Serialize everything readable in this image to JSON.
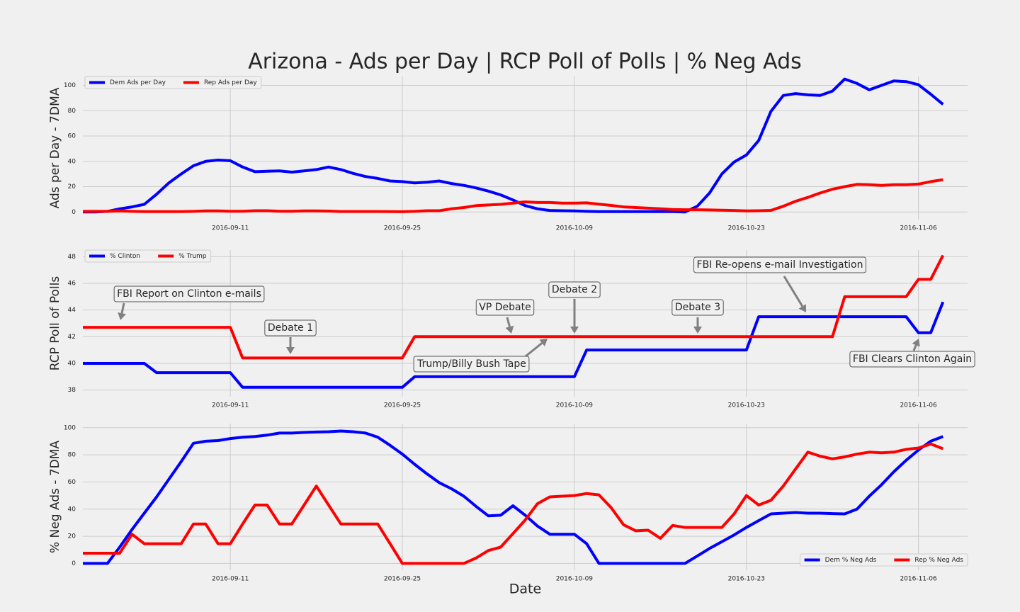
{
  "chart_data": [
    {
      "type": "line",
      "title": "Arizona - Ads per Day | RCP Poll of Polls | % Neg Ads",
      "ylabel": "Ads per Day - 7DMA",
      "legend": "upper left",
      "grid": true,
      "x": [
        "2016-08-30",
        "2016-08-31",
        "2016-09-01",
        "2016-09-02",
        "2016-09-03",
        "2016-09-04",
        "2016-09-05",
        "2016-09-06",
        "2016-09-07",
        "2016-09-08",
        "2016-09-09",
        "2016-09-10",
        "2016-09-11",
        "2016-09-12",
        "2016-09-13",
        "2016-09-14",
        "2016-09-15",
        "2016-09-16",
        "2016-09-17",
        "2016-09-18",
        "2016-09-19",
        "2016-09-20",
        "2016-09-21",
        "2016-09-22",
        "2016-09-23",
        "2016-09-24",
        "2016-09-25",
        "2016-09-26",
        "2016-09-27",
        "2016-09-28",
        "2016-09-29",
        "2016-09-30",
        "2016-10-01",
        "2016-10-02",
        "2016-10-03",
        "2016-10-04",
        "2016-10-05",
        "2016-10-06",
        "2016-10-07",
        "2016-10-08",
        "2016-10-09",
        "2016-10-10",
        "2016-10-11",
        "2016-10-12",
        "2016-10-13",
        "2016-10-14",
        "2016-10-15",
        "2016-10-16",
        "2016-10-17",
        "2016-10-18",
        "2016-10-19",
        "2016-10-20",
        "2016-10-21",
        "2016-10-22",
        "2016-10-23",
        "2016-10-24",
        "2016-10-25",
        "2016-10-26",
        "2016-10-27",
        "2016-10-28",
        "2016-10-29",
        "2016-10-30",
        "2016-10-31",
        "2016-11-01",
        "2016-11-02",
        "2016-11-03",
        "2016-11-04",
        "2016-11-05",
        "2016-11-06",
        "2016-11-07",
        "2016-11-08"
      ],
      "xlim": [
        "2016-08-30",
        "2016-11-10"
      ],
      "xticks": [
        "2016-09-11",
        "2016-09-25",
        "2016-10-09",
        "2016-10-23",
        "2016-11-06"
      ],
      "ylim": [
        -6,
        107
      ],
      "yticks": [
        0,
        20,
        40,
        60,
        80,
        100
      ],
      "series": [
        {
          "name": "Dem Ads per Day",
          "color": "#0000ff",
          "values": [
            0,
            0,
            0.5,
            2.5,
            4,
            6,
            14,
            23,
            30,
            36.5,
            40,
            41,
            40.5,
            35.5,
            31.8,
            32.2,
            32.5,
            31.5,
            32.5,
            33.5,
            35.5,
            33.5,
            30.5,
            28,
            26.5,
            24.5,
            24,
            23,
            23.5,
            24.5,
            22.5,
            21,
            19,
            16.5,
            13.5,
            9.5,
            5,
            2.5,
            1.2,
            1,
            0.8,
            0.5,
            0.3,
            0.3,
            0.3,
            0.3,
            0.3,
            0.3,
            0.3,
            0,
            4.5,
            15,
            30,
            39.5,
            45,
            56.5,
            79.5,
            92,
            93.5,
            92.5,
            92,
            95.5,
            105,
            101.5,
            96.5,
            100,
            103.5,
            103,
            100.5,
            93,
            85
          ]
        },
        {
          "name": "Rep Ads per Day",
          "color": "#ff0000",
          "values": [
            0.5,
            0.5,
            0.5,
            0.8,
            0.5,
            0.3,
            0.3,
            0.3,
            0.3,
            0.5,
            0.8,
            0.8,
            0.6,
            0.6,
            1,
            1,
            0.6,
            0.6,
            0.8,
            0.9,
            0.7,
            0.4,
            0.4,
            0.4,
            0.4,
            0.3,
            0.2,
            0.5,
            1,
            1,
            2.5,
            3.5,
            5,
            5.5,
            6,
            7,
            8,
            7.5,
            7.5,
            7,
            7,
            7.2,
            6.2,
            5.2,
            4,
            3.5,
            3,
            2.5,
            2,
            1.8,
            1.8,
            1.6,
            1.4,
            1.2,
            0.8,
            1,
            1.3,
            4.5,
            8.5,
            11.5,
            15,
            18,
            20,
            21.8,
            21.5,
            21,
            21.5,
            21.5,
            22,
            24,
            25.5
          ]
        }
      ]
    },
    {
      "type": "line",
      "ylabel": "RCP Poll of Polls",
      "legend": "upper left",
      "grid": true,
      "x": [
        "2016-08-30",
        "2016-08-31",
        "2016-09-01",
        "2016-09-02",
        "2016-09-03",
        "2016-09-04",
        "2016-09-05",
        "2016-09-06",
        "2016-09-07",
        "2016-09-08",
        "2016-09-09",
        "2016-09-10",
        "2016-09-11",
        "2016-09-12",
        "2016-09-13",
        "2016-09-14",
        "2016-09-15",
        "2016-09-16",
        "2016-09-17",
        "2016-09-18",
        "2016-09-19",
        "2016-09-20",
        "2016-09-21",
        "2016-09-22",
        "2016-09-23",
        "2016-09-24",
        "2016-09-25",
        "2016-09-26",
        "2016-09-27",
        "2016-09-28",
        "2016-09-29",
        "2016-09-30",
        "2016-10-01",
        "2016-10-02",
        "2016-10-03",
        "2016-10-04",
        "2016-10-05",
        "2016-10-06",
        "2016-10-07",
        "2016-10-08",
        "2016-10-09",
        "2016-10-10",
        "2016-10-11",
        "2016-10-12",
        "2016-10-13",
        "2016-10-14",
        "2016-10-15",
        "2016-10-16",
        "2016-10-17",
        "2016-10-18",
        "2016-10-19",
        "2016-10-20",
        "2016-10-21",
        "2016-10-22",
        "2016-10-23",
        "2016-10-24",
        "2016-10-25",
        "2016-10-26",
        "2016-10-27",
        "2016-10-28",
        "2016-10-29",
        "2016-10-30",
        "2016-10-31",
        "2016-11-01",
        "2016-11-02",
        "2016-11-03",
        "2016-11-04",
        "2016-11-05",
        "2016-11-06",
        "2016-11-07",
        "2016-11-08"
      ],
      "xlim": [
        "2016-08-30",
        "2016-11-10"
      ],
      "xticks": [
        "2016-09-11",
        "2016-09-25",
        "2016-10-09",
        "2016-10-23",
        "2016-11-06"
      ],
      "ylim": [
        37.5,
        48.5
      ],
      "yticks": [
        38,
        40,
        42,
        44,
        46,
        48
      ],
      "series": [
        {
          "name": "% Clinton",
          "color": "#0000ff",
          "values": [
            40,
            40,
            40,
            40,
            40,
            40,
            39.3,
            39.3,
            39.3,
            39.3,
            39.3,
            39.3,
            39.3,
            38.2,
            38.2,
            38.2,
            38.2,
            38.2,
            38.2,
            38.2,
            38.2,
            38.2,
            38.2,
            38.2,
            38.2,
            38.2,
            38.2,
            39,
            39,
            39,
            39,
            39,
            39,
            39,
            39,
            39,
            39,
            39,
            39,
            39,
            39,
            41,
            41,
            41,
            41,
            41,
            41,
            41,
            41,
            41,
            41,
            41,
            41,
            41,
            41,
            43.5,
            43.5,
            43.5,
            43.5,
            43.5,
            43.5,
            43.5,
            43.5,
            43.5,
            43.5,
            43.5,
            43.5,
            43.5,
            42.3,
            42.3,
            44.6
          ]
        },
        {
          "name": "% Trump",
          "color": "#ff0000",
          "values": [
            42.7,
            42.7,
            42.7,
            42.7,
            42.7,
            42.7,
            42.7,
            42.7,
            42.7,
            42.7,
            42.7,
            42.7,
            42.7,
            40.4,
            40.4,
            40.4,
            40.4,
            40.4,
            40.4,
            40.4,
            40.4,
            40.4,
            40.4,
            40.4,
            40.4,
            40.4,
            40.4,
            42,
            42,
            42,
            42,
            42,
            42,
            42,
            42,
            42,
            42,
            42,
            42,
            42,
            42,
            42,
            42,
            42,
            42,
            42,
            42,
            42,
            42,
            42,
            42,
            42,
            42,
            42,
            42,
            42,
            42,
            42,
            42,
            42,
            42,
            42,
            45,
            45,
            45,
            45,
            45,
            45,
            46.3,
            46.3,
            48.1
          ]
        }
      ],
      "annotations": [
        "FBI Report on Clinton e-mails",
        "Debate 1",
        "VP Debate",
        "Debate 2",
        "Debate 3",
        "FBI Re-opens e-mail Investigation",
        "Trump/Billy Bush Tape",
        "FBI Clears Clinton Again"
      ]
    },
    {
      "type": "line",
      "ylabel": "% Neg Ads - 7DMA",
      "xlabel": "Date",
      "legend": "lower right",
      "grid": true,
      "x": [
        "2016-08-30",
        "2016-08-31",
        "2016-09-01",
        "2016-09-02",
        "2016-09-03",
        "2016-09-04",
        "2016-09-05",
        "2016-09-06",
        "2016-09-07",
        "2016-09-08",
        "2016-09-09",
        "2016-09-10",
        "2016-09-11",
        "2016-09-12",
        "2016-09-13",
        "2016-09-14",
        "2016-09-15",
        "2016-09-16",
        "2016-09-17",
        "2016-09-18",
        "2016-09-19",
        "2016-09-20",
        "2016-09-21",
        "2016-09-22",
        "2016-09-23",
        "2016-09-24",
        "2016-09-25",
        "2016-09-26",
        "2016-09-27",
        "2016-09-28",
        "2016-09-29",
        "2016-09-30",
        "2016-10-01",
        "2016-10-02",
        "2016-10-03",
        "2016-10-04",
        "2016-10-05",
        "2016-10-06",
        "2016-10-07",
        "2016-10-08",
        "2016-10-09",
        "2016-10-10",
        "2016-10-11",
        "2016-10-12",
        "2016-10-13",
        "2016-10-14",
        "2016-10-15",
        "2016-10-16",
        "2016-10-17",
        "2016-10-18",
        "2016-10-19",
        "2016-10-20",
        "2016-10-21",
        "2016-10-22",
        "2016-10-23",
        "2016-10-24",
        "2016-10-25",
        "2016-10-26",
        "2016-10-27",
        "2016-10-28",
        "2016-10-29",
        "2016-10-30",
        "2016-10-31",
        "2016-11-01",
        "2016-11-02",
        "2016-11-03",
        "2016-11-04",
        "2016-11-05",
        "2016-11-06",
        "2016-11-07",
        "2016-11-08"
      ],
      "xlim": [
        "2016-08-30",
        "2016-11-10"
      ],
      "xticks": [
        "2016-09-11",
        "2016-09-25",
        "2016-10-09",
        "2016-10-23",
        "2016-11-06"
      ],
      "ylim": [
        -5,
        103
      ],
      "yticks": [
        0,
        20,
        40,
        60,
        80,
        100
      ],
      "series": [
        {
          "name": "Dem % Neg Ads",
          "color": "#0000ff",
          "values": [
            0,
            0,
            0,
            12,
            25,
            37,
            49,
            62,
            75,
            88.5,
            90,
            90.5,
            92,
            93,
            93.5,
            94.5,
            96,
            96,
            96.5,
            96.8,
            97,
            97.5,
            97,
            96,
            93,
            87,
            80.5,
            73,
            66,
            59.5,
            55,
            49.5,
            42,
            35,
            35.5,
            42.5,
            35.5,
            27.5,
            21.5,
            21.5,
            21.5,
            14.5,
            0,
            0,
            0,
            0,
            0,
            0,
            0,
            0,
            5.5,
            11,
            16,
            21,
            26.5,
            31.5,
            36.5,
            37,
            37.5,
            37,
            37,
            36.7,
            36.5,
            40,
            49.5,
            58,
            67.5,
            76,
            83.5,
            90,
            93.5
          ]
        },
        {
          "name": "Rep % Neg Ads",
          "color": "#ff0000",
          "values": [
            7.5,
            7.5,
            7.5,
            7.5,
            21.5,
            14.5,
            14.5,
            14.5,
            14.5,
            29,
            29,
            14.5,
            14.5,
            29,
            43,
            43,
            29,
            29,
            43,
            57,
            43,
            29,
            29,
            29,
            29,
            14.5,
            0,
            0,
            0,
            0,
            0,
            0,
            4,
            9.5,
            12,
            22,
            32,
            44,
            49,
            49.5,
            50,
            51.5,
            50.5,
            41,
            28.5,
            24,
            24.5,
            18.5,
            28,
            26.5,
            26.5,
            26.5,
            26.5,
            36.5,
            50,
            43,
            46.5,
            57,
            69.5,
            82,
            79,
            77,
            78.5,
            80.5,
            82,
            81.5,
            82,
            84,
            85,
            88,
            84.5
          ]
        }
      ]
    }
  ]
}
